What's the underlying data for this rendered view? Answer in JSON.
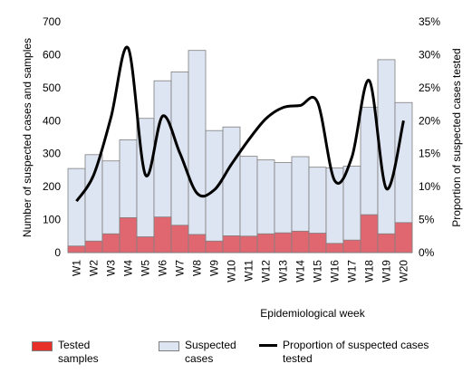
{
  "chart_data": {
    "type": "bar",
    "categories": [
      "W1",
      "W2",
      "W3",
      "W4",
      "W5",
      "W6",
      "W7",
      "W8",
      "W9",
      "W10",
      "W11",
      "W12",
      "W13",
      "W14",
      "W15",
      "W16",
      "W17",
      "W18",
      "W19",
      "W20"
    ],
    "series": [
      {
        "name": "Suspected cases",
        "color": "#dde4f2",
        "values": [
          255,
          297,
          278,
          342,
          407,
          521,
          548,
          613,
          370,
          381,
          292,
          281,
          273,
          291,
          259,
          257,
          262,
          441,
          585,
          455
        ]
      },
      {
        "name": "Tested samples",
        "color": "#e06670",
        "values": [
          20,
          35,
          57,
          106,
          48,
          108,
          83,
          55,
          35,
          51,
          50,
          57,
          60,
          65,
          59,
          28,
          38,
          115,
          57,
          91
        ]
      },
      {
        "name": "Proportion of suspected cases tested",
        "type": "line",
        "axis": "y2",
        "color": "#000000",
        "values": [
          7.8,
          11.8,
          20.5,
          31,
          11.8,
          20.7,
          15.1,
          9.0,
          9.5,
          13.4,
          17.1,
          20.3,
          22.0,
          22.3,
          22.8,
          10.9,
          14.5,
          26.1,
          9.7,
          20
        ]
      }
    ],
    "x_label": "Epidemiological week",
    "y_label": "Number of suspected cases and samples",
    "y2_label": "Proportion of suspected cases tested",
    "ylim": [
      0,
      700
    ],
    "yticks": [
      0,
      100,
      200,
      300,
      400,
      500,
      600,
      700
    ],
    "y2lim": [
      0,
      35
    ],
    "y2ticks": [
      {
        "value": 0,
        "label": "0%"
      },
      {
        "value": 5,
        "label": "5%"
      },
      {
        "value": 10,
        "label": "10%"
      },
      {
        "value": 15,
        "label": "15%"
      },
      {
        "value": 20,
        "label": "20%"
      },
      {
        "value": 25,
        "label": "25%"
      },
      {
        "value": 30,
        "label": "30%"
      },
      {
        "value": 35,
        "label": "35%"
      }
    ],
    "legend": "bottom"
  }
}
